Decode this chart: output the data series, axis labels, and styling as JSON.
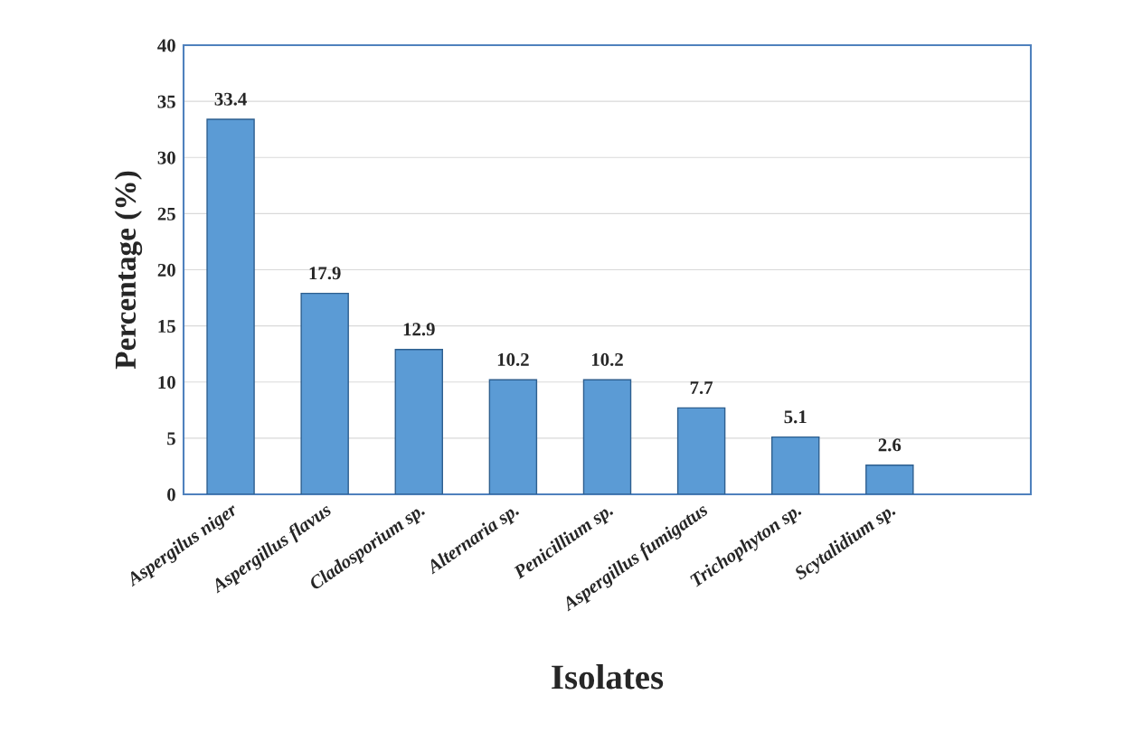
{
  "chart_data": {
    "type": "bar",
    "xlabel": "Isolates",
    "ylabel": "Percentage (%)",
    "categories": [
      "Aspergilus niger",
      "Aspergillus flavus",
      "Cladosporium sp.",
      "Alternaria sp.",
      "Penicillium sp.",
      "Aspergillus fumigatus",
      "Trichophyton sp.",
      "Scytalidium sp.",
      null
    ],
    "values": [
      33.4,
      17.9,
      12.9,
      10.2,
      10.2,
      7.7,
      5.1,
      2.6,
      null
    ],
    "color": "#5b9bd5",
    "ylim": [
      0,
      40
    ],
    "yticks": [
      0,
      5,
      10,
      15,
      20,
      25,
      30,
      35,
      40
    ],
    "grid": "y",
    "data_labels": true
  }
}
